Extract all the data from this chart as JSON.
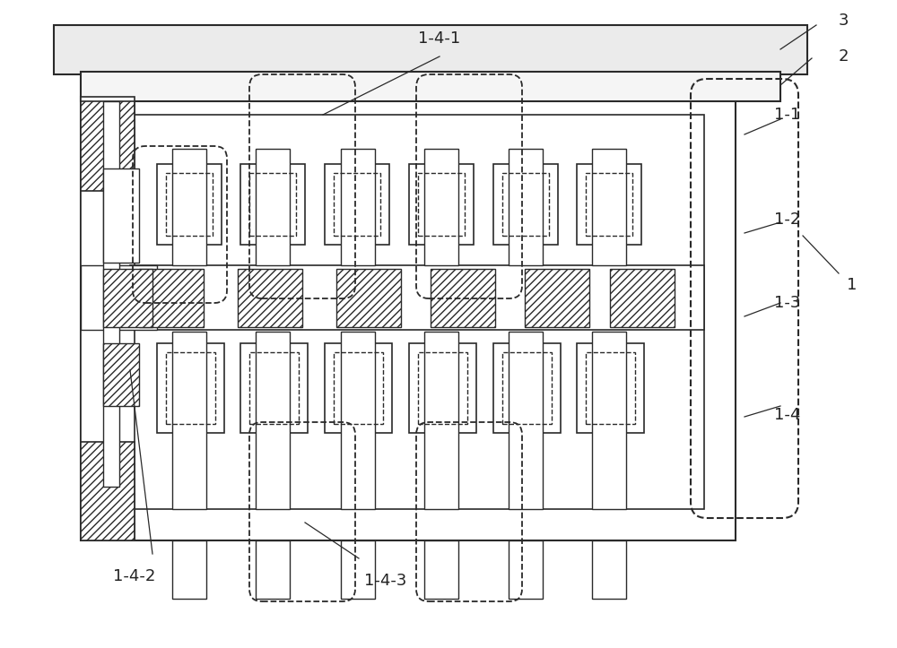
{
  "bg_color": "#ffffff",
  "line_color": "#2a2a2a",
  "fig_width": 10.0,
  "fig_height": 7.23,
  "top_plate_color": "#e8e8e8",
  "second_plate_color": "#f0f0f0"
}
